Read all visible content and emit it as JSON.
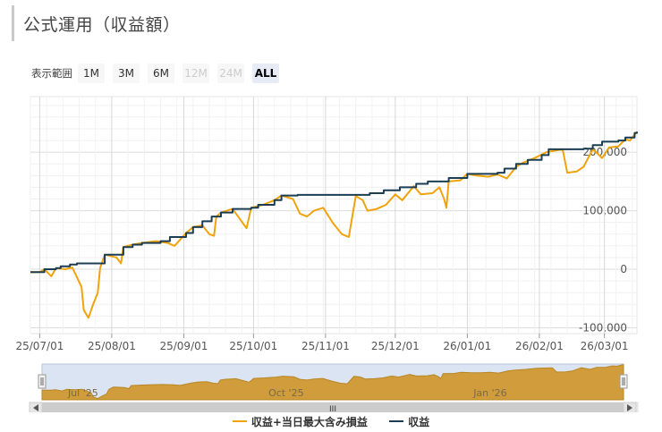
{
  "page": {
    "title": "公式運用（収益額）"
  },
  "range_selector": {
    "label": "表示範囲",
    "buttons": [
      {
        "label": "1M",
        "state": "normal"
      },
      {
        "label": "3M",
        "state": "normal"
      },
      {
        "label": "6M",
        "state": "normal"
      },
      {
        "label": "12M",
        "state": "disabled"
      },
      {
        "label": "24M",
        "state": "disabled"
      },
      {
        "label": "ALL",
        "state": "active"
      }
    ]
  },
  "navigator": {
    "labels": [
      "Jul '25",
      "Oct '25",
      "Jan '26"
    ],
    "scroll_glyph": "III"
  },
  "chart_data": {
    "type": "line",
    "title": "",
    "xlabel": "",
    "ylabel": "",
    "x_ticks": [
      "25/07/01",
      "25/08/01",
      "25/09/01",
      "25/10/01",
      "25/11/01",
      "25/12/01",
      "26/01/01",
      "26/02/01",
      "26/03/01"
    ],
    "y_ticks": [
      -100000,
      0,
      100000,
      200000
    ],
    "y_tick_labels": [
      "-100,000",
      "0",
      "100,000",
      "200,000"
    ],
    "ylim": [
      -110000,
      295000
    ],
    "grid": true,
    "legend_position": "bottom",
    "colors": {
      "primary": "#f0a30a",
      "secondary": "#1c3e55",
      "navigator": "#d19c3c"
    },
    "series": [
      {
        "name": "収益",
        "color": "#1c3e55",
        "points": [
          [
            "2025-06-27",
            -5000
          ],
          [
            "2025-07-01",
            -5000
          ],
          [
            "2025-07-03",
            0
          ],
          [
            "2025-07-08",
            2000
          ],
          [
            "2025-07-10",
            5000
          ],
          [
            "2025-07-14",
            8000
          ],
          [
            "2025-07-17",
            10000
          ],
          [
            "2025-07-28",
            10000
          ],
          [
            "2025-07-29",
            25000
          ],
          [
            "2025-08-05",
            25000
          ],
          [
            "2025-08-06",
            38000
          ],
          [
            "2025-08-10",
            42000
          ],
          [
            "2025-08-14",
            45000
          ],
          [
            "2025-08-22",
            48000
          ],
          [
            "2025-08-26",
            55000
          ],
          [
            "2025-09-02",
            62000
          ],
          [
            "2025-09-05",
            72000
          ],
          [
            "2025-09-09",
            82000
          ],
          [
            "2025-09-13",
            90000
          ],
          [
            "2025-09-17",
            97000
          ],
          [
            "2025-09-22",
            103000
          ],
          [
            "2025-09-30",
            105000
          ],
          [
            "2025-10-03",
            110000
          ],
          [
            "2025-10-10",
            118000
          ],
          [
            "2025-10-13",
            126000
          ],
          [
            "2025-10-20",
            127000
          ],
          [
            "2025-11-18",
            127000
          ],
          [
            "2025-11-20",
            130000
          ],
          [
            "2025-11-26",
            135000
          ],
          [
            "2025-12-03",
            140000
          ],
          [
            "2025-12-10",
            146000
          ],
          [
            "2025-12-15",
            150000
          ],
          [
            "2025-12-24",
            156000
          ],
          [
            "2026-01-01",
            163000
          ],
          [
            "2026-01-14",
            165000
          ],
          [
            "2026-01-17",
            172000
          ],
          [
            "2026-01-22",
            180000
          ],
          [
            "2026-01-27",
            187000
          ],
          [
            "2026-02-02",
            195000
          ],
          [
            "2026-02-05",
            205000
          ],
          [
            "2026-02-20",
            206000
          ],
          [
            "2026-02-24",
            212000
          ],
          [
            "2026-02-28",
            218000
          ],
          [
            "2026-03-07",
            220000
          ],
          [
            "2026-03-10",
            225000
          ],
          [
            "2026-03-14",
            233000
          ],
          [
            "2026-03-15",
            235000
          ]
        ]
      },
      {
        "name": "収益+当日最大含み損益",
        "color": "#f0a30a",
        "points": [
          [
            "2025-06-27",
            -5000
          ],
          [
            "2025-07-01",
            -5000
          ],
          [
            "2025-07-03",
            0
          ],
          [
            "2025-07-06",
            -12000
          ],
          [
            "2025-07-08",
            2000
          ],
          [
            "2025-07-12",
            0
          ],
          [
            "2025-07-15",
            3000
          ],
          [
            "2025-07-19",
            -30000
          ],
          [
            "2025-07-20",
            -70000
          ],
          [
            "2025-07-22",
            -83000
          ],
          [
            "2025-07-24",
            -60000
          ],
          [
            "2025-07-26",
            -40000
          ],
          [
            "2025-07-27",
            2000
          ],
          [
            "2025-07-29",
            25000
          ],
          [
            "2025-08-03",
            20000
          ],
          [
            "2025-08-05",
            10000
          ],
          [
            "2025-08-06",
            38000
          ],
          [
            "2025-08-10",
            42000
          ],
          [
            "2025-08-14",
            45000
          ],
          [
            "2025-08-20",
            48000
          ],
          [
            "2025-08-25",
            45000
          ],
          [
            "2025-08-28",
            40000
          ],
          [
            "2025-09-02",
            62000
          ],
          [
            "2025-09-05",
            72000
          ],
          [
            "2025-09-09",
            75000
          ],
          [
            "2025-09-12",
            60000
          ],
          [
            "2025-09-14",
            57000
          ],
          [
            "2025-09-15",
            90000
          ],
          [
            "2025-09-17",
            97000
          ],
          [
            "2025-09-22",
            103000
          ],
          [
            "2025-09-28",
            70000
          ],
          [
            "2025-09-30",
            105000
          ],
          [
            "2025-10-05",
            110000
          ],
          [
            "2025-10-10",
            118000
          ],
          [
            "2025-10-13",
            126000
          ],
          [
            "2025-10-18",
            120000
          ],
          [
            "2025-10-21",
            95000
          ],
          [
            "2025-10-24",
            90000
          ],
          [
            "2025-10-27",
            100000
          ],
          [
            "2025-10-31",
            105000
          ],
          [
            "2025-11-04",
            80000
          ],
          [
            "2025-11-08",
            60000
          ],
          [
            "2025-11-11",
            55000
          ],
          [
            "2025-11-14",
            125000
          ],
          [
            "2025-11-17",
            118000
          ],
          [
            "2025-11-19",
            100000
          ],
          [
            "2025-11-23",
            103000
          ],
          [
            "2025-11-27",
            110000
          ],
          [
            "2025-12-01",
            128000
          ],
          [
            "2025-12-04",
            118000
          ],
          [
            "2025-12-09",
            142000
          ],
          [
            "2025-12-12",
            128000
          ],
          [
            "2025-12-17",
            130000
          ],
          [
            "2025-12-20",
            140000
          ],
          [
            "2025-12-22",
            120000
          ],
          [
            "2025-12-23",
            105000
          ],
          [
            "2025-12-24",
            150000
          ],
          [
            "2025-12-29",
            152000
          ],
          [
            "2026-01-01",
            163000
          ],
          [
            "2026-01-05",
            160000
          ],
          [
            "2026-01-10",
            158000
          ],
          [
            "2026-01-14",
            162000
          ],
          [
            "2026-01-18",
            155000
          ],
          [
            "2026-01-22",
            175000
          ],
          [
            "2026-01-25",
            182000
          ],
          [
            "2026-01-30",
            190000
          ],
          [
            "2026-02-04",
            200000
          ],
          [
            "2026-02-11",
            205000
          ],
          [
            "2026-02-13",
            165000
          ],
          [
            "2026-02-17",
            167000
          ],
          [
            "2026-02-20",
            175000
          ],
          [
            "2026-02-24",
            205000
          ],
          [
            "2026-02-26",
            198000
          ],
          [
            "2026-02-28",
            190000
          ],
          [
            "2026-03-03",
            208000
          ],
          [
            "2026-03-07",
            210000
          ],
          [
            "2026-03-10",
            222000
          ],
          [
            "2026-03-12",
            220000
          ],
          [
            "2026-03-15",
            235000
          ]
        ]
      }
    ]
  }
}
